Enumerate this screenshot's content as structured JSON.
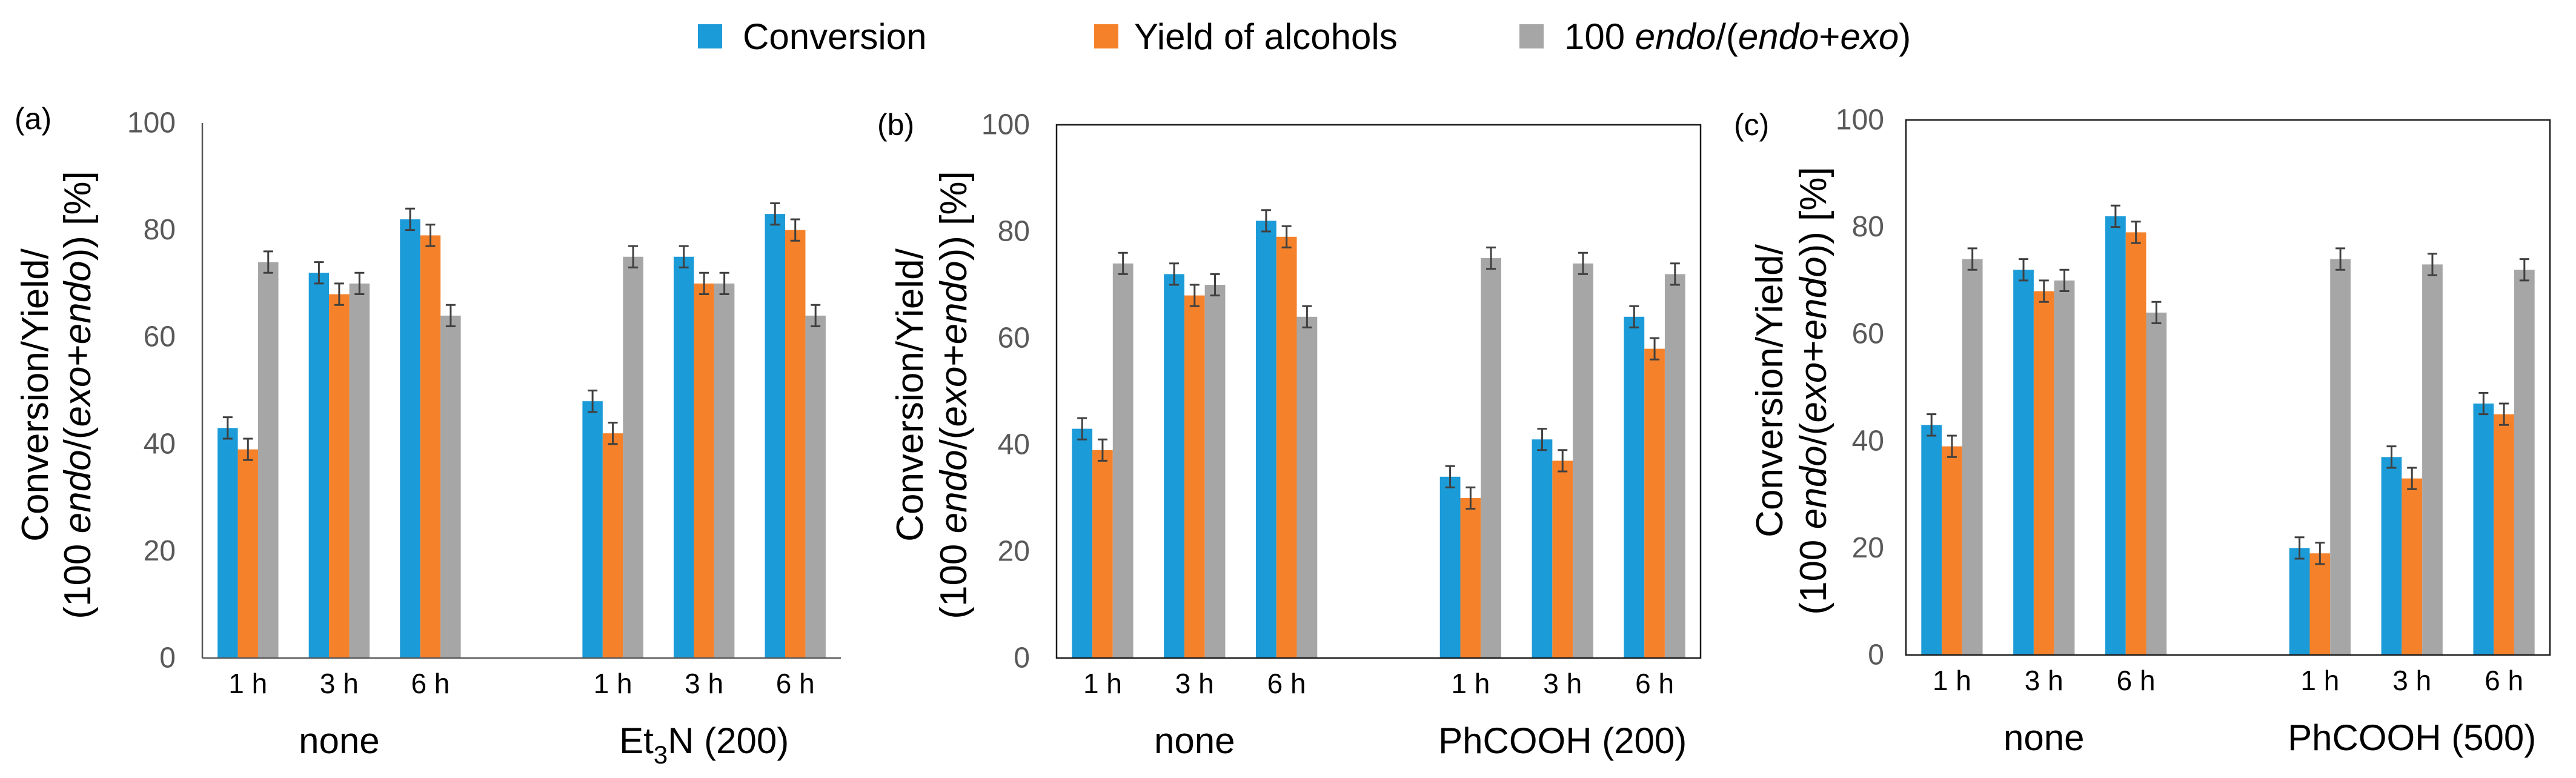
{
  "legend": [
    {
      "label": [
        {
          "text": "Conversion"
        }
      ],
      "color": "#1B9BD8"
    },
    {
      "label": [
        {
          "text": "Yield of alcohols"
        }
      ],
      "color": "#F5822A"
    },
    {
      "label": [
        {
          "text": "100 "
        },
        {
          "text": "endo",
          "italic": true
        },
        {
          "text": "/("
        },
        {
          "text": "endo",
          "italic": true
        },
        {
          "text": "+"
        },
        {
          "text": "exo",
          "italic": true
        },
        {
          "text": ")"
        }
      ],
      "color": "#A6A6A6"
    }
  ],
  "chart_data": [
    {
      "type": "bar",
      "panel_label": "(a)",
      "ylabel": [
        [
          {
            "text": "Conversion/Yield/"
          }
        ],
        [
          {
            "text": "(100 "
          },
          {
            "text": "endo",
            "italic": true
          },
          {
            "text": "/("
          },
          {
            "text": "exo",
            "italic": true
          },
          {
            "text": "+"
          },
          {
            "text": "endo",
            "italic": true
          },
          {
            "text": ")) [%]"
          }
        ]
      ],
      "ylim": [
        0,
        100
      ],
      "yticks": [
        0,
        20,
        40,
        60,
        80,
        100
      ],
      "groups": [
        {
          "label": [
            {
              "text": "none"
            }
          ],
          "categories": [
            "1 h",
            "3 h",
            "6 h"
          ]
        },
        {
          "label": [
            {
              "text": "Et"
            },
            {
              "text": "3",
              "subscript": true
            },
            {
              "text": "N (200)"
            }
          ],
          "categories": [
            "1 h",
            "3 h",
            "6 h"
          ]
        }
      ],
      "series": [
        {
          "name": "Conversion",
          "values": [
            43,
            72,
            82,
            48,
            75,
            83
          ],
          "errors": [
            2,
            2,
            2,
            2,
            2,
            2
          ]
        },
        {
          "name": "Yield of alcohols",
          "values": [
            39,
            68,
            79,
            42,
            70,
            80
          ],
          "errors": [
            2,
            2,
            2,
            2,
            2,
            2
          ]
        },
        {
          "name": "100 endo/(endo+exo)",
          "values": [
            74,
            70,
            64,
            75,
            70,
            64
          ],
          "errors": [
            2,
            2,
            2,
            2,
            2,
            2
          ]
        }
      ]
    },
    {
      "type": "bar",
      "panel_label": "(b)",
      "ylabel": [
        [
          {
            "text": "Conversion/Yield/"
          }
        ],
        [
          {
            "text": "(100 "
          },
          {
            "text": "endo",
            "italic": true
          },
          {
            "text": "/("
          },
          {
            "text": "exo",
            "italic": true
          },
          {
            "text": "+"
          },
          {
            "text": "endo",
            "italic": true
          },
          {
            "text": ")) [%]"
          }
        ]
      ],
      "ylim": [
        0,
        100
      ],
      "yticks": [
        0,
        20,
        40,
        60,
        80,
        100
      ],
      "groups": [
        {
          "label": [
            {
              "text": "none"
            }
          ],
          "categories": [
            "1 h",
            "3 h",
            "6 h"
          ]
        },
        {
          "label": [
            {
              "text": "PhCOOH (200)"
            }
          ],
          "categories": [
            "1 h",
            "3 h",
            "6 h"
          ]
        }
      ],
      "series": [
        {
          "name": "Conversion",
          "values": [
            43,
            72,
            82,
            34,
            41,
            64
          ],
          "errors": [
            2,
            2,
            2,
            2,
            2,
            2
          ]
        },
        {
          "name": "Yield of alcohols",
          "values": [
            39,
            68,
            79,
            30,
            37,
            58
          ],
          "errors": [
            2,
            2,
            2,
            2,
            2,
            2
          ]
        },
        {
          "name": "100 endo/(endo+exo)",
          "values": [
            74,
            70,
            64,
            75,
            74,
            72
          ],
          "errors": [
            2,
            2,
            2,
            2,
            2,
            2
          ]
        }
      ]
    },
    {
      "type": "bar",
      "panel_label": "(c)",
      "ylabel": [
        [
          {
            "text": "Conversion/Yield/"
          }
        ],
        [
          {
            "text": "(100 "
          },
          {
            "text": "endo",
            "italic": true
          },
          {
            "text": "/("
          },
          {
            "text": "exo",
            "italic": true
          },
          {
            "text": "+"
          },
          {
            "text": "endo",
            "italic": true
          },
          {
            "text": ")) [%]"
          }
        ]
      ],
      "ylim": [
        0,
        100
      ],
      "yticks": [
        0,
        20,
        40,
        60,
        80,
        100
      ],
      "groups": [
        {
          "label": [
            {
              "text": "none"
            }
          ],
          "categories": [
            "1 h",
            "3 h",
            "6 h"
          ]
        },
        {
          "label": [
            {
              "text": "PhCOOH (500)"
            }
          ],
          "categories": [
            "1 h",
            "3 h",
            "6 h"
          ]
        }
      ],
      "series": [
        {
          "name": "Conversion",
          "values": [
            43,
            72,
            82,
            20,
            37,
            47
          ],
          "errors": [
            2,
            2,
            2,
            2,
            2,
            2
          ]
        },
        {
          "name": "Yield of alcohols",
          "values": [
            39,
            68,
            79,
            19,
            33,
            45
          ],
          "errors": [
            2,
            2,
            2,
            2,
            2,
            2
          ]
        },
        {
          "name": "100 endo/(endo+exo)",
          "values": [
            74,
            70,
            64,
            74,
            73,
            72
          ],
          "errors": [
            2,
            2,
            2,
            2,
            2,
            2
          ]
        }
      ]
    }
  ]
}
